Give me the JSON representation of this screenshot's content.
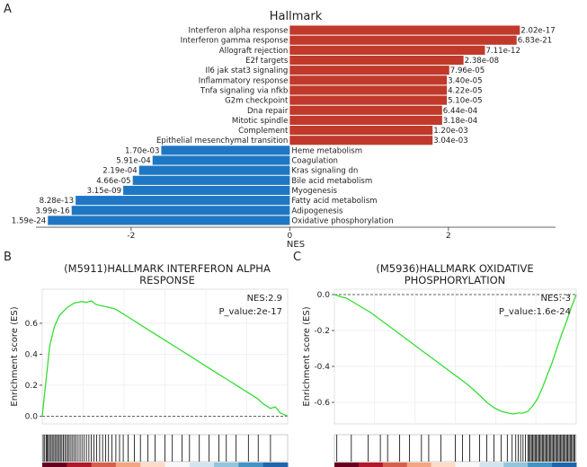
{
  "panel_labels": {
    "a": "A",
    "b": "B",
    "c": "C"
  },
  "colors": {
    "positive": "#C0392B",
    "negative": "#1F77C4",
    "es_line": "#33DD33",
    "ticks": "#000000",
    "zero_line": "#333333"
  },
  "chart_data": [
    {
      "id": "hallmark",
      "type": "bar",
      "orientation": "horizontal",
      "title": "Hallmark",
      "xlabel": "NES",
      "ylabel": "",
      "xlim": [
        -3.2,
        3.35
      ],
      "xticks": [
        -2,
        0,
        2
      ],
      "grid": false,
      "bars": [
        {
          "label": "Interferon alpha response",
          "value": 2.9,
          "pvalue": "2.02e-17"
        },
        {
          "label": "Interferon gamma response",
          "value": 2.86,
          "pvalue": "6.83e-21"
        },
        {
          "label": "Allograft rejection",
          "value": 2.46,
          "pvalue": "7.11e-12"
        },
        {
          "label": "E2f targets",
          "value": 2.19,
          "pvalue": "2.38e-08"
        },
        {
          "label": "Il6 jak stat3 signaling",
          "value": 2.01,
          "pvalue": "7.96e-05"
        },
        {
          "label": "Inflammatory response",
          "value": 1.98,
          "pvalue": "3.40e-05"
        },
        {
          "label": "Tnfa signaling via nfkb",
          "value": 1.98,
          "pvalue": "4.22e-05"
        },
        {
          "label": "G2m checkpoint",
          "value": 1.98,
          "pvalue": "5.10e-05"
        },
        {
          "label": "Dna repair",
          "value": 1.92,
          "pvalue": "6.44e-04"
        },
        {
          "label": "Mitotic spindle",
          "value": 1.92,
          "pvalue": "3.18e-04"
        },
        {
          "label": "Complement",
          "value": 1.8,
          "pvalue": "1.20e-03"
        },
        {
          "label": "Epithelial mesenchymal transition",
          "value": 1.8,
          "pvalue": "3.04e-03"
        },
        {
          "label": "Heme metabolism",
          "value": -1.62,
          "pvalue": "1.70e-03"
        },
        {
          "label": "Coagulation",
          "value": -1.73,
          "pvalue": "5.91e-04"
        },
        {
          "label": "Kras signaling dn",
          "value": -1.9,
          "pvalue": "2.19e-04"
        },
        {
          "label": "Bile acid metabolism",
          "value": -1.98,
          "pvalue": "4.66e-05"
        },
        {
          "label": "Myogenesis",
          "value": -2.1,
          "pvalue": "3.15e-09"
        },
        {
          "label": "Fatty acid metabolism",
          "value": -2.7,
          "pvalue": "8.28e-13"
        },
        {
          "label": "Adipogenesis",
          "value": -2.75,
          "pvalue": "3.99e-16"
        },
        {
          "label": "Oxidative phosphorylation",
          "value": -3.05,
          "pvalue": "1.59e-24"
        }
      ]
    },
    {
      "id": "gsea_b",
      "type": "line",
      "title": "(M5911)HALLMARK INTERFERON ALPHA\nRESPONSE",
      "xlabel": "",
      "ylabel": "Enrichment score (ES)",
      "ylim": [
        -0.05,
        0.82
      ],
      "yticks": [
        0.0,
        0.2,
        0.4,
        0.6
      ],
      "ytick_labels": [
        "0.0",
        "0.2",
        "0.4",
        "0.6"
      ],
      "grid": true,
      "annotations": [
        "NES:2.9",
        "P_value:2e-17"
      ],
      "x": [
        0,
        0.01,
        0.02,
        0.03,
        0.05,
        0.07,
        0.1,
        0.13,
        0.16,
        0.18,
        0.2,
        0.22,
        0.25,
        0.28,
        0.3,
        0.35,
        0.4,
        0.45,
        0.5,
        0.55,
        0.6,
        0.65,
        0.7,
        0.75,
        0.8,
        0.85,
        0.88,
        0.9,
        0.93,
        0.95,
        0.97,
        1.0
      ],
      "y": [
        0.0,
        0.15,
        0.3,
        0.45,
        0.58,
        0.65,
        0.7,
        0.73,
        0.74,
        0.735,
        0.745,
        0.72,
        0.71,
        0.7,
        0.69,
        0.64,
        0.59,
        0.54,
        0.49,
        0.44,
        0.39,
        0.34,
        0.29,
        0.24,
        0.19,
        0.14,
        0.11,
        0.08,
        0.05,
        0.06,
        0.02,
        0.0
      ],
      "hits": [
        0.004,
        0.01,
        0.016,
        0.02,
        0.025,
        0.03,
        0.036,
        0.041,
        0.047,
        0.052,
        0.058,
        0.063,
        0.069,
        0.074,
        0.08,
        0.086,
        0.092,
        0.098,
        0.104,
        0.11,
        0.117,
        0.124,
        0.131,
        0.138,
        0.146,
        0.154,
        0.162,
        0.171,
        0.18,
        0.19,
        0.2,
        0.211,
        0.222,
        0.234,
        0.246,
        0.258,
        0.27,
        0.284,
        0.3,
        0.315,
        0.33,
        0.35,
        0.375,
        0.4,
        0.43,
        0.46,
        0.5,
        0.53,
        0.57,
        0.6,
        0.64,
        0.68,
        0.72,
        0.75,
        0.79,
        0.84,
        0.88,
        0.93
      ],
      "rank_colors": [
        "#67001F",
        "#B2182B",
        "#D6604D",
        "#F4A582",
        "#FDDBC7",
        "#F7F7F7",
        "#D1E5F0",
        "#92C5DE",
        "#4393C3",
        "#2166AC"
      ]
    },
    {
      "id": "gsea_c",
      "type": "line",
      "title": "(M5936)HALLMARK OXIDATIVE\nPHOSPHORYLATION",
      "xlabel": "",
      "ylabel": "Enrichment score (ES)",
      "ylim": [
        -0.72,
        0.03
      ],
      "yticks": [
        0.0,
        -0.2,
        -0.4,
        -0.6
      ],
      "ytick_labels": [
        "0.0",
        "-0.2",
        "-0.4",
        "-0.6"
      ],
      "grid": true,
      "annotations": [
        "NES:-3",
        "P_value:1.6e-24"
      ],
      "x": [
        0,
        0.02,
        0.05,
        0.1,
        0.15,
        0.2,
        0.25,
        0.3,
        0.35,
        0.4,
        0.45,
        0.5,
        0.55,
        0.6,
        0.63,
        0.66,
        0.69,
        0.72,
        0.74,
        0.76,
        0.78,
        0.8,
        0.82,
        0.84,
        0.86,
        0.88,
        0.9,
        0.92,
        0.94,
        0.96,
        0.98,
        1.0
      ],
      "y": [
        0.0,
        -0.01,
        -0.02,
        -0.06,
        -0.1,
        -0.15,
        -0.2,
        -0.25,
        -0.3,
        -0.35,
        -0.4,
        -0.45,
        -0.5,
        -0.56,
        -0.6,
        -0.63,
        -0.65,
        -0.66,
        -0.665,
        -0.66,
        -0.66,
        -0.65,
        -0.62,
        -0.58,
        -0.52,
        -0.45,
        -0.38,
        -0.3,
        -0.22,
        -0.15,
        -0.07,
        0.0
      ],
      "hits": [
        0.01,
        0.07,
        0.14,
        0.19,
        0.22,
        0.27,
        0.31,
        0.36,
        0.39,
        0.44,
        0.5,
        0.53,
        0.56,
        0.6,
        0.63,
        0.66,
        0.69,
        0.715,
        0.735,
        0.75,
        0.76,
        0.77,
        0.78,
        0.79,
        0.8,
        0.805,
        0.81,
        0.815,
        0.82,
        0.825,
        0.83,
        0.835,
        0.84,
        0.845,
        0.85,
        0.855,
        0.86,
        0.865,
        0.87,
        0.875,
        0.88,
        0.885,
        0.89,
        0.895,
        0.9,
        0.905,
        0.91,
        0.915,
        0.92,
        0.925,
        0.93,
        0.935,
        0.94,
        0.945,
        0.95,
        0.955,
        0.96,
        0.965,
        0.97,
        0.975,
        0.98,
        0.985,
        0.99,
        0.995
      ],
      "rank_colors": [
        "#67001F",
        "#B2182B",
        "#D6604D",
        "#F4A582",
        "#FDDBC7",
        "#F7F7F7",
        "#D1E5F0",
        "#92C5DE",
        "#4393C3",
        "#2166AC"
      ]
    }
  ]
}
